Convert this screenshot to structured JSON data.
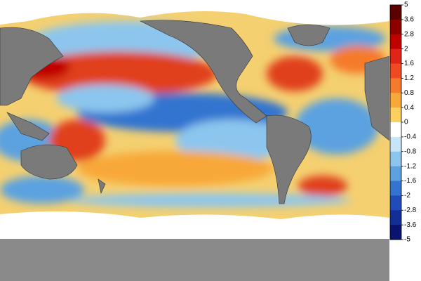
{
  "colorbar": {
    "ticks": [
      5,
      3.6,
      2.8,
      2,
      1.6,
      1.2,
      0.8,
      0.4,
      0,
      -0.4,
      -0.8,
      -1.2,
      -1.6,
      -2,
      -2.8,
      -3.6,
      -5
    ],
    "colors": [
      "#5a0000",
      "#8c0000",
      "#c00000",
      "#e02418",
      "#f04a22",
      "#f57a2c",
      "#f8a838",
      "#fbd060",
      "#ffffff",
      "#c6e6f8",
      "#8cc6ee",
      "#5ca2e0",
      "#3274d0",
      "#1f4cb8",
      "#142e98",
      "#0a1470"
    ]
  }
}
